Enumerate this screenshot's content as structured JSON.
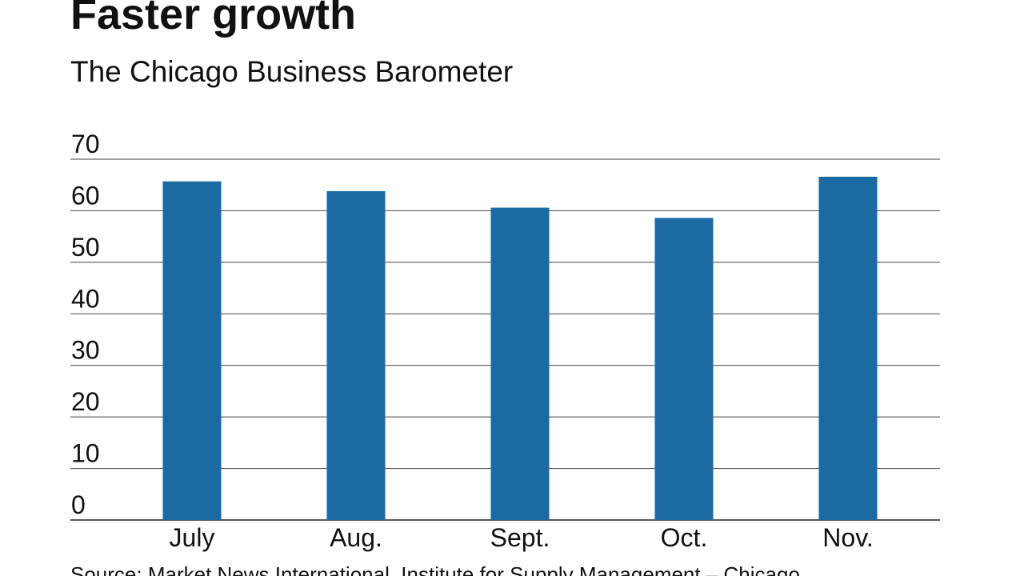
{
  "chart_data": {
    "type": "bar",
    "title": "Faster growth",
    "subtitle": "The Chicago Business Barometer",
    "categories": [
      "July",
      "Aug.",
      "Sept.",
      "Oct.",
      "Nov."
    ],
    "values": [
      65.7,
      63.8,
      60.6,
      58.6,
      66.6
    ],
    "ylim": [
      0,
      70
    ],
    "yticks": [
      0,
      10,
      20,
      30,
      40,
      50,
      60,
      70
    ],
    "xlabel": "",
    "ylabel": "",
    "grid": true,
    "bar_color": "#1b6aa2",
    "source": "Source: Market News International, Institute for Supply Management – Chicago"
  }
}
